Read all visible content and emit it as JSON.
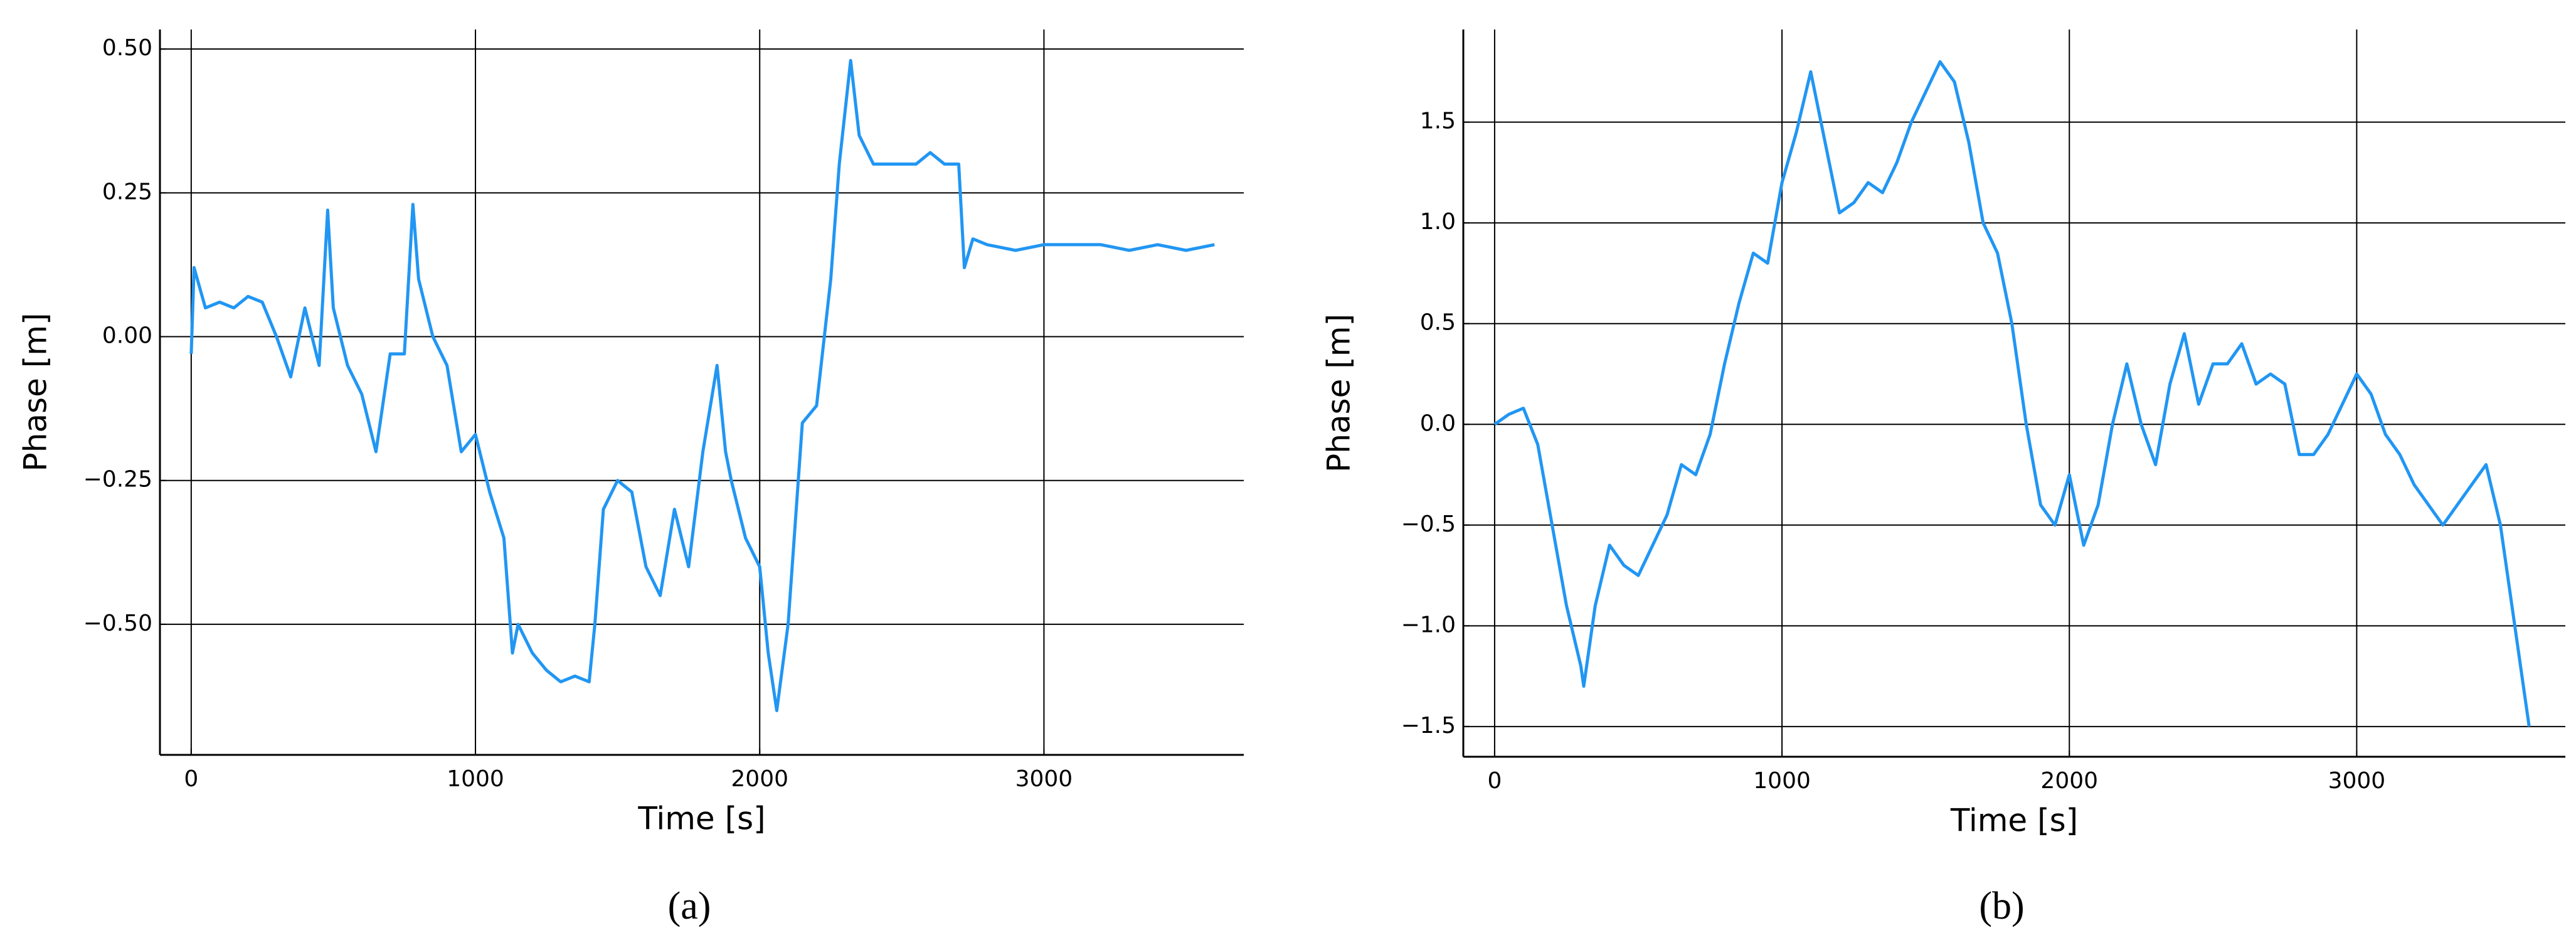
{
  "chart_data": [
    {
      "type": "line",
      "caption": "(a)",
      "xlabel": "Time [s]",
      "ylabel": "Phase [m]",
      "color": "#2196f3",
      "grid": true,
      "xlim": [
        -110,
        3703
      ],
      "ylim": [
        -0.727,
        0.534
      ],
      "xticks": [
        0,
        1000,
        2000,
        3000
      ],
      "yticks": [
        {
          "value": -0.5,
          "label": "−0.50"
        },
        {
          "value": -0.25,
          "label": "−0.25"
        },
        {
          "value": 0,
          "label": "0.00"
        },
        {
          "value": 0.25,
          "label": "0.25"
        },
        {
          "value": 0.5,
          "label": "0.50"
        }
      ],
      "x": [
        0,
        10,
        50,
        100,
        150,
        200,
        250,
        300,
        350,
        400,
        450,
        480,
        500,
        550,
        600,
        650,
        700,
        750,
        780,
        800,
        850,
        900,
        950,
        1000,
        1050,
        1100,
        1130,
        1150,
        1200,
        1250,
        1300,
        1350,
        1400,
        1420,
        1450,
        1500,
        1550,
        1600,
        1650,
        1700,
        1750,
        1800,
        1850,
        1880,
        1900,
        1950,
        2000,
        2030,
        2060,
        2100,
        2150,
        2200,
        2250,
        2280,
        2320,
        2350,
        2400,
        2450,
        2500,
        2550,
        2600,
        2650,
        2700,
        2720,
        2750,
        2800,
        2900,
        3000,
        3100,
        3200,
        3300,
        3400,
        3500,
        3600
      ],
      "values": [
        -0.03,
        0.12,
        0.05,
        0.06,
        0.05,
        0.07,
        0.06,
        0.0,
        -0.07,
        0.05,
        -0.05,
        0.22,
        0.05,
        -0.05,
        -0.1,
        -0.2,
        -0.03,
        -0.03,
        0.23,
        0.1,
        0.0,
        -0.05,
        -0.2,
        -0.17,
        -0.27,
        -0.35,
        -0.55,
        -0.5,
        -0.55,
        -0.58,
        -0.6,
        -0.59,
        -0.6,
        -0.5,
        -0.3,
        -0.25,
        -0.27,
        -0.4,
        -0.45,
        -0.3,
        -0.4,
        -0.2,
        -0.05,
        -0.2,
        -0.25,
        -0.35,
        -0.4,
        -0.55,
        -0.65,
        -0.5,
        -0.15,
        -0.12,
        0.1,
        0.3,
        0.48,
        0.35,
        0.3,
        0.3,
        0.3,
        0.3,
        0.32,
        0.3,
        0.3,
        0.12,
        0.17,
        0.16,
        0.15,
        0.16,
        0.16,
        0.16,
        0.15,
        0.16,
        0.15,
        0.16
      ]
    },
    {
      "type": "line",
      "caption": "(b)",
      "xlabel": "Time [s]",
      "ylabel": "Phase [m]",
      "color": "#2196f3",
      "grid": true,
      "xlim": [
        -109,
        3726
      ],
      "ylim": [
        -1.65,
        1.96
      ],
      "xticks": [
        0,
        1000,
        2000,
        3000
      ],
      "yticks": [
        {
          "value": -1.5,
          "label": "−1.5"
        },
        {
          "value": -1,
          "label": "−1.0"
        },
        {
          "value": -0.5,
          "label": "−0.5"
        },
        {
          "value": 0,
          "label": "0.0"
        },
        0.5,
        {
          "value": 1,
          "label": "1.0"
        },
        1.5
      ],
      "x": [
        0,
        50,
        100,
        150,
        200,
        250,
        300,
        310,
        350,
        400,
        450,
        500,
        550,
        600,
        650,
        700,
        750,
        800,
        850,
        900,
        950,
        1000,
        1050,
        1100,
        1150,
        1200,
        1250,
        1300,
        1350,
        1400,
        1450,
        1500,
        1550,
        1600,
        1650,
        1700,
        1750,
        1800,
        1850,
        1900,
        1950,
        2000,
        2050,
        2100,
        2150,
        2200,
        2250,
        2300,
        2350,
        2400,
        2450,
        2500,
        2550,
        2600,
        2650,
        2700,
        2750,
        2800,
        2850,
        2900,
        2950,
        3000,
        3050,
        3100,
        3150,
        3200,
        3250,
        3300,
        3350,
        3400,
        3450,
        3500,
        3550,
        3600
      ],
      "values": [
        0.0,
        0.05,
        0.08,
        -0.1,
        -0.5,
        -0.9,
        -1.2,
        -1.3,
        -0.9,
        -0.6,
        -0.7,
        -0.75,
        -0.6,
        -0.45,
        -0.2,
        -0.25,
        -0.05,
        0.3,
        0.6,
        0.85,
        0.8,
        1.2,
        1.45,
        1.75,
        1.4,
        1.05,
        1.1,
        1.2,
        1.15,
        1.3,
        1.5,
        1.65,
        1.8,
        1.7,
        1.4,
        1.0,
        0.85,
        0.5,
        0.0,
        -0.4,
        -0.5,
        -0.25,
        -0.6,
        -0.4,
        0.0,
        0.3,
        0.0,
        -0.2,
        0.2,
        0.45,
        0.1,
        0.3,
        0.3,
        0.4,
        0.2,
        0.25,
        0.2,
        -0.15,
        -0.15,
        -0.05,
        0.1,
        0.25,
        0.15,
        -0.05,
        -0.15,
        -0.3,
        -0.4,
        -0.5,
        -0.4,
        -0.3,
        -0.2,
        -0.5,
        -1.0,
        -1.5
      ]
    }
  ]
}
